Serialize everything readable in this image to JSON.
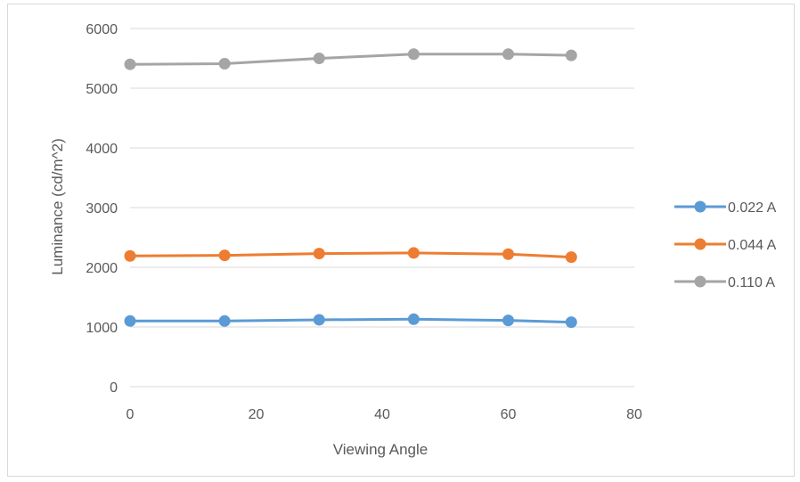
{
  "chart_data": {
    "type": "line",
    "title": "",
    "xlabel": "Viewing Angle",
    "ylabel": "Luminance (cd/m^2)",
    "xlim": [
      0,
      80
    ],
    "ylim": [
      0,
      6000
    ],
    "x_ticks": [
      0,
      20,
      40,
      60,
      80
    ],
    "y_ticks": [
      0,
      1000,
      2000,
      3000,
      4000,
      5000,
      6000
    ],
    "grid": "horizontal",
    "legend_position": "right",
    "x": [
      0,
      15,
      30,
      45,
      60,
      70
    ],
    "series": [
      {
        "name": "0.022 A",
        "color": "#5b9bd5",
        "values": [
          1100,
          1100,
          1120,
          1130,
          1110,
          1080
        ]
      },
      {
        "name": "0.044 A",
        "color": "#ed7d31",
        "values": [
          2190,
          2200,
          2230,
          2240,
          2220,
          2170
        ]
      },
      {
        "name": "0.110 A",
        "color": "#a5a5a5",
        "values": [
          5400,
          5410,
          5500,
          5570,
          5570,
          5550
        ]
      }
    ]
  }
}
